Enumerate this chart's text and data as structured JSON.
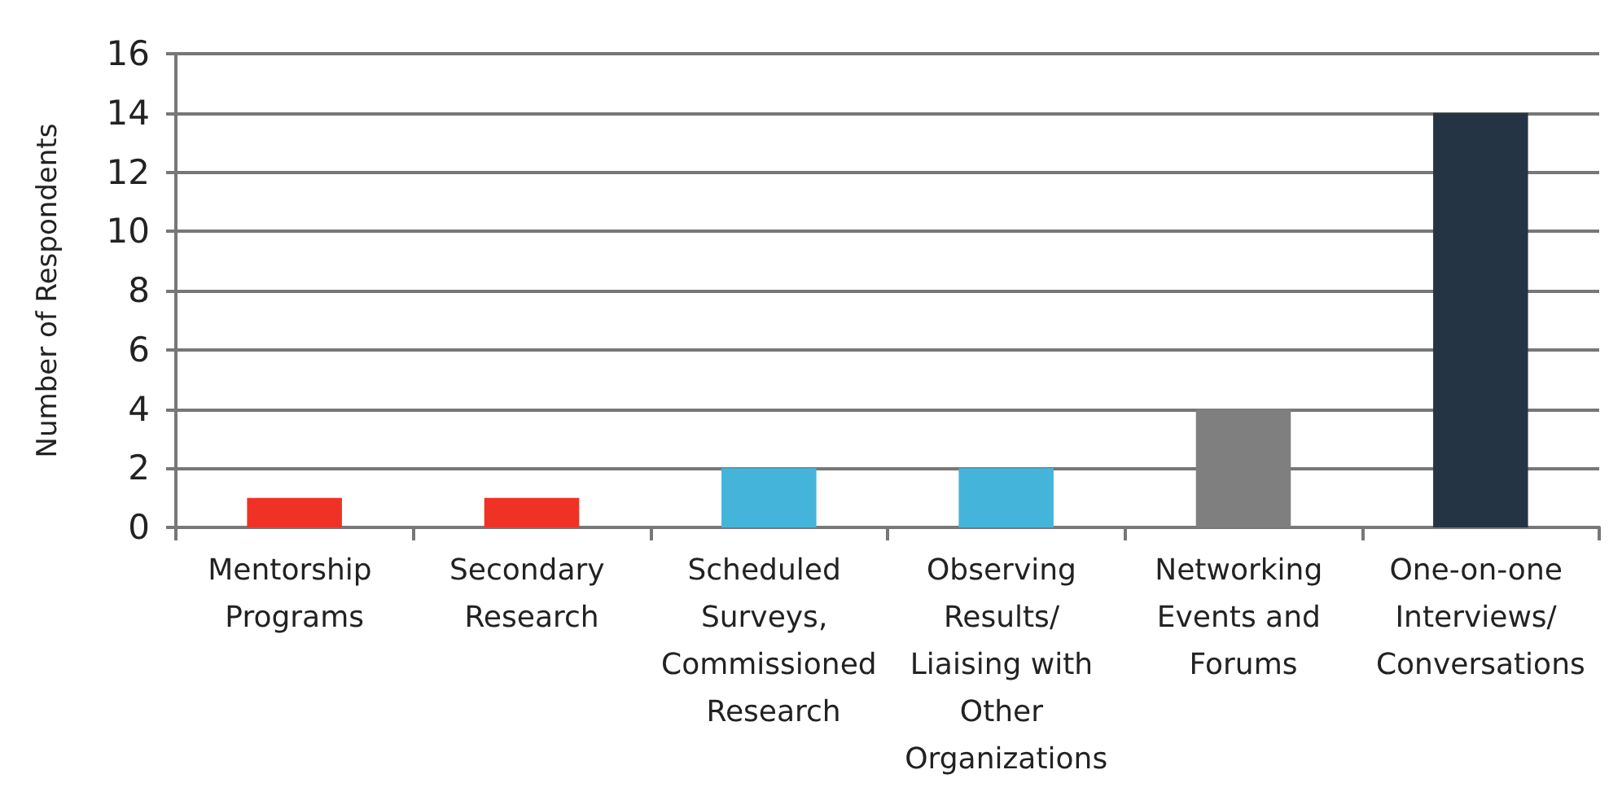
{
  "chart_data": {
    "type": "bar",
    "ylabel": "Number of Respondents",
    "categories": [
      "Mentorship Programs",
      "Secondary Research",
      "Scheduled Surveys, Commissioned Research",
      "Observing Results/ Liaising with Other Organizations",
      "Networking Events and Forums",
      "One-on-one Interviews/ Conversations"
    ],
    "values": [
      1,
      1,
      2,
      2,
      4,
      14
    ],
    "colors": [
      "#f03226",
      "#f03226",
      "#45b4da",
      "#45b4da",
      "#7f7f7f",
      "#253445"
    ],
    "ylim": [
      0,
      16
    ],
    "yticks": [
      0,
      2,
      4,
      6,
      8,
      10,
      12,
      14,
      16
    ],
    "grid": "y"
  }
}
